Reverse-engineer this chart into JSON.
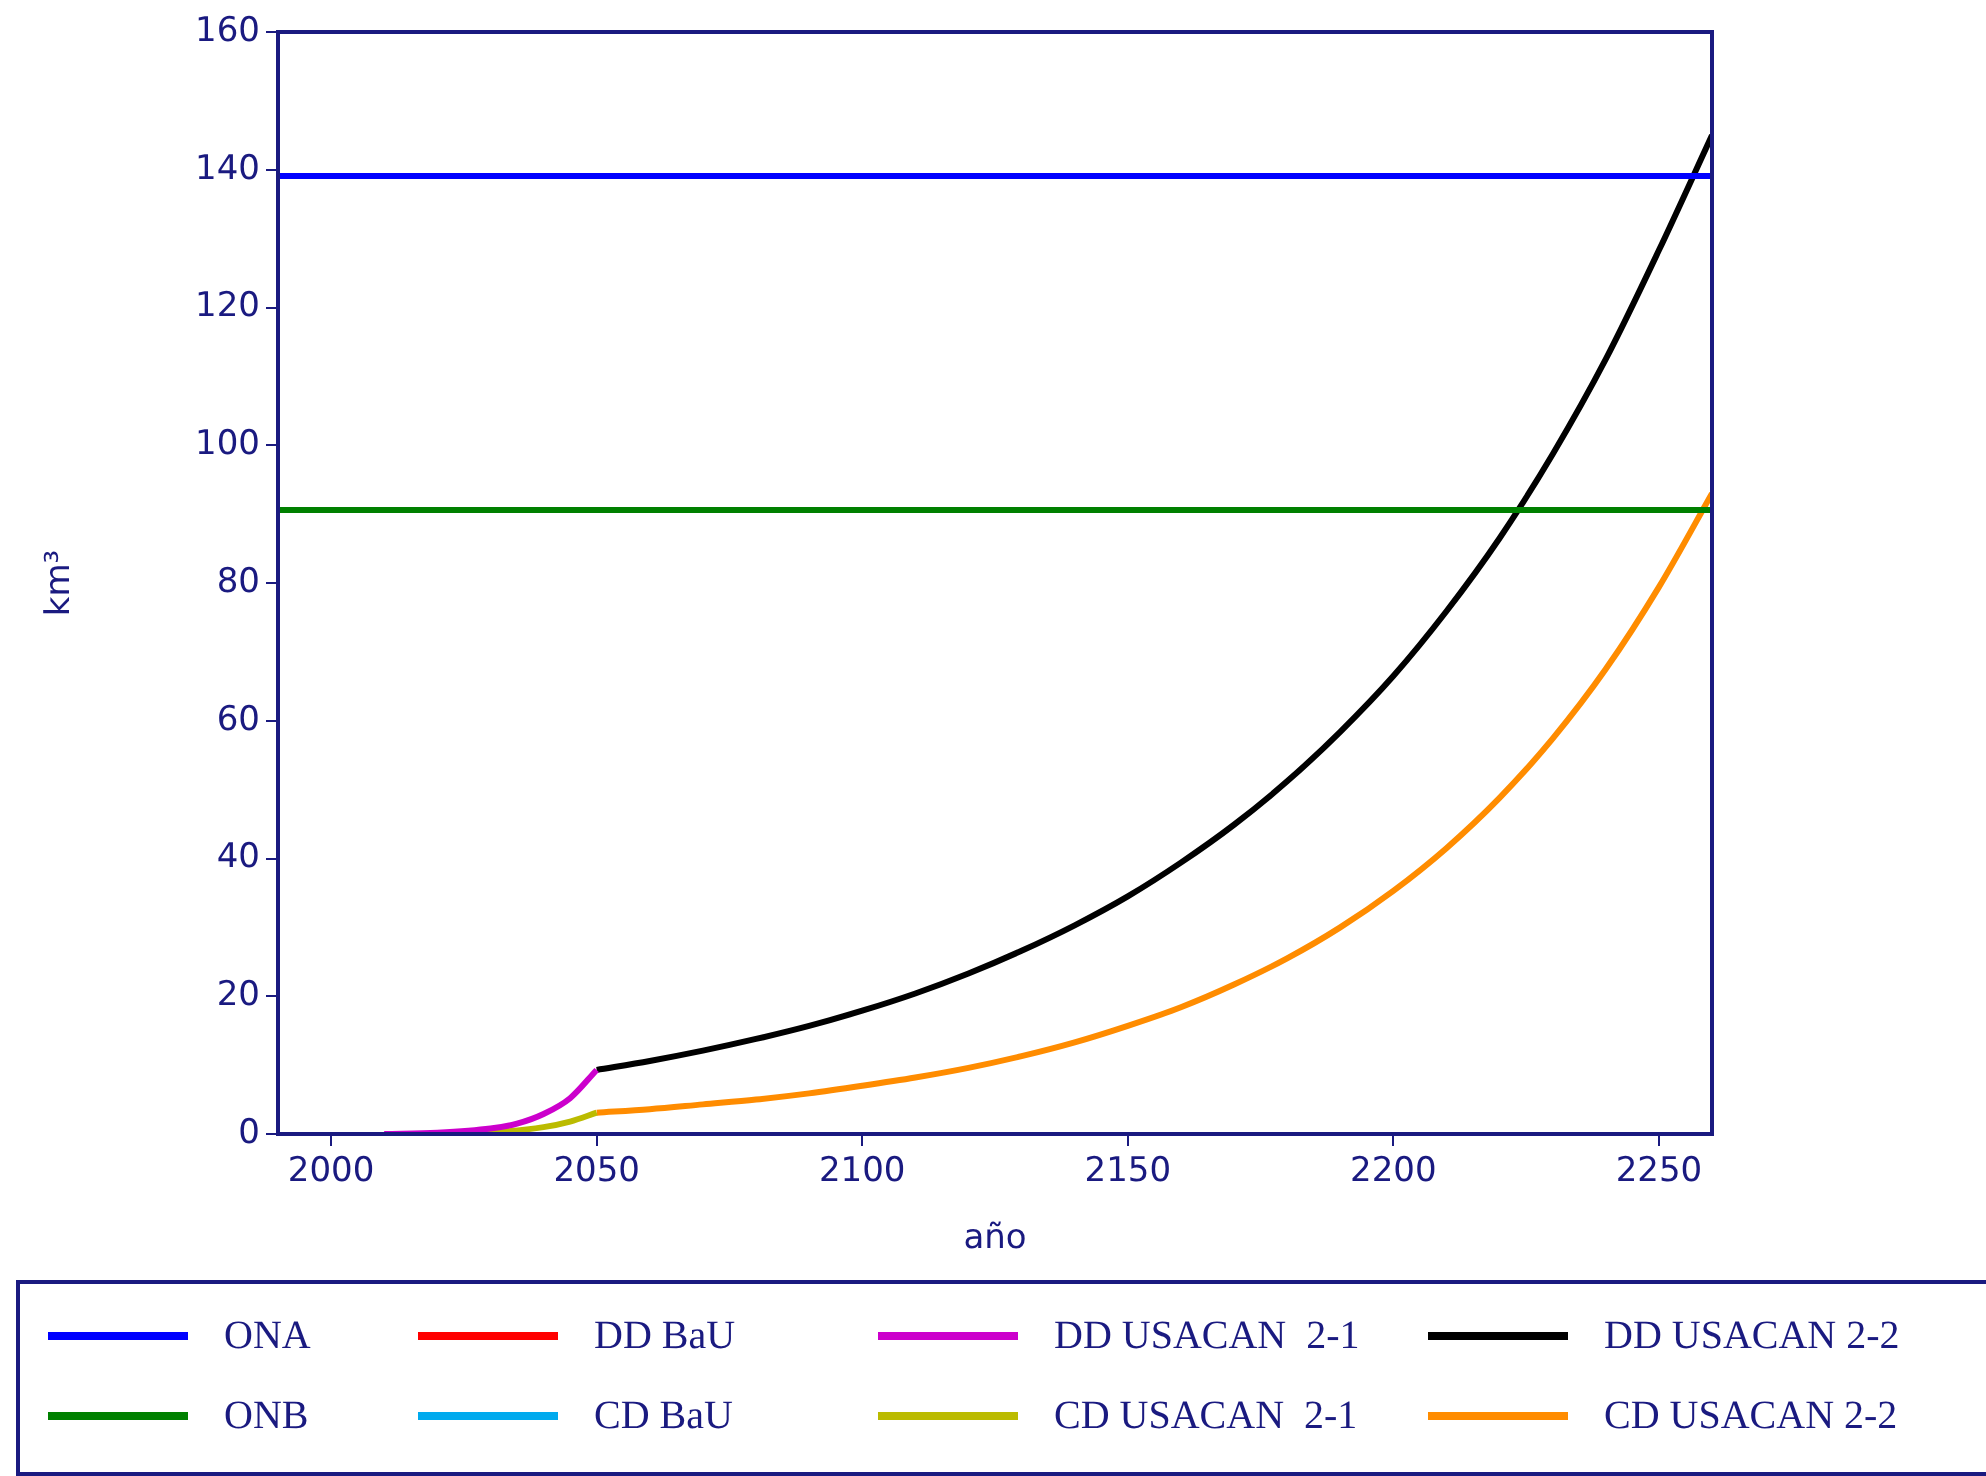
{
  "chart_data": {
    "type": "line",
    "xlabel": "año",
    "ylabel": "km³",
    "xlim": [
      1990,
      2260
    ],
    "xticks": [
      2000,
      2050,
      2100,
      2150,
      2200,
      2250
    ],
    "ylim": [
      0,
      160
    ],
    "yticks": [
      0,
      20,
      40,
      60,
      80,
      100,
      120,
      140,
      160
    ],
    "grid": false,
    "legend": "bottom",
    "marker": "none",
    "line_style": "solid",
    "series": [
      {
        "name": "ONA",
        "color": "#0000ff",
        "x": [
          1990,
          2260
        ],
        "values": [
          139.1,
          139.1
        ]
      },
      {
        "name": "ONB",
        "color": "#008000",
        "x": [
          1990,
          2260
        ],
        "values": [
          90.6,
          90.6
        ]
      },
      {
        "name": "DD BaU",
        "color": "#ff0000"
      },
      {
        "name": "CD BaU",
        "color": "#00aaee"
      },
      {
        "name": "DD USACAN  2-1",
        "color": "#cc00cc",
        "x": [
          2010,
          2020,
          2030,
          2035,
          2040,
          2045,
          2050
        ],
        "values": [
          0,
          0.2,
          0.8,
          1.5,
          2.9,
          5.2,
          9.3
        ]
      },
      {
        "name": "CD USACAN  2-1",
        "color": "#bbbb00",
        "x": [
          2020,
          2030,
          2040,
          2045,
          2050
        ],
        "values": [
          0,
          0.2,
          1.0,
          1.8,
          3.1
        ]
      },
      {
        "name": "DD USACAN 2-2",
        "color": "#000000",
        "x": [
          2050,
          2060,
          2070,
          2080,
          2090,
          2100,
          2110,
          2120,
          2130,
          2140,
          2150,
          2160,
          2170,
          2180,
          2190,
          2200,
          2210,
          2220,
          2230,
          2240,
          2250,
          2260
        ],
        "values": [
          9.3,
          10.6,
          12.1,
          13.8,
          15.7,
          17.9,
          20.4,
          23.3,
          26.6,
          30.3,
          34.5,
          39.4,
          44.9,
          51.2,
          58.4,
          66.5,
          75.9,
          86.5,
          98.7,
          112.5,
          128.3,
          145
        ]
      },
      {
        "name": "CD USACAN 2-2",
        "color": "#ff8c00",
        "x": [
          2050,
          2060,
          2070,
          2080,
          2090,
          2100,
          2110,
          2120,
          2130,
          2140,
          2150,
          2160,
          2170,
          2180,
          2190,
          2200,
          2210,
          2220,
          2230,
          2240,
          2250,
          2260
        ],
        "values": [
          3.1,
          3.6,
          4.3,
          5.0,
          5.9,
          7.0,
          8.2,
          9.6,
          11.3,
          13.3,
          15.7,
          18.4,
          21.7,
          25.5,
          30.0,
          35.3,
          41.5,
          48.8,
          57.4,
          67.5,
          79.4,
          93.0
        ]
      }
    ]
  }
}
